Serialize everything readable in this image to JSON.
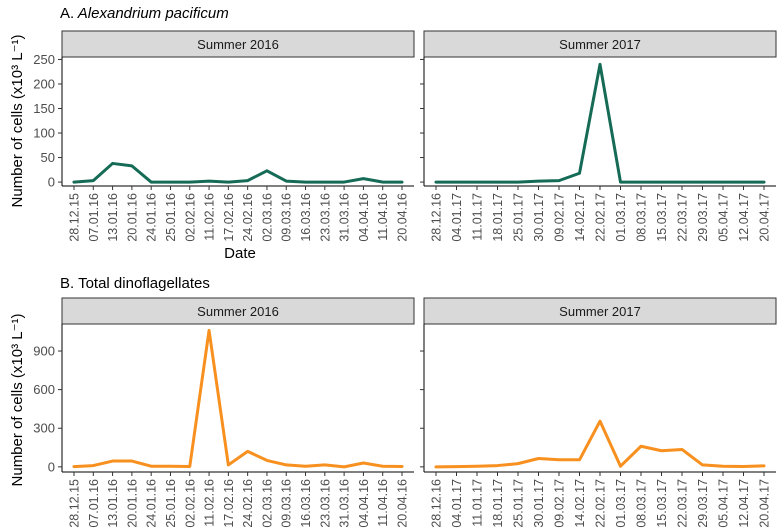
{
  "colors": {
    "alexandrium": "#156b56",
    "dinoflagellates": "#f7901e",
    "strip_fill": "#d9d9d9",
    "axis": "#000000",
    "tick_label": "#4d4d4d"
  },
  "chart_data": [
    {
      "type": "line",
      "panel_title": "A.",
      "panel_title_italic": "Alexandrium pacificum",
      "ylabel": "Number of cells (x10³ L⁻¹)",
      "xlabel": "Date",
      "ylim": [
        -8,
        255
      ],
      "yticks": [
        0,
        50,
        100,
        150,
        200,
        250
      ],
      "color_key": "alexandrium",
      "facets": [
        {
          "title": "Summer 2016",
          "categories": [
            "28.12.15",
            "07.01.16",
            "13.01.16",
            "20.01.16",
            "24.01.16",
            "25.01.16",
            "02.02.16",
            "11.02.16",
            "17.02.16",
            "24.02.16",
            "02.03.16",
            "09.03.16",
            "16.03.16",
            "23.03.16",
            "31.03.16",
            "04.04.16",
            "11.04.16",
            "20.04.16"
          ],
          "values": [
            0,
            3,
            38,
            33,
            0,
            0,
            0,
            2,
            0,
            3,
            23,
            2,
            0,
            0,
            0,
            7,
            0,
            0
          ]
        },
        {
          "title": "Summer 2017",
          "categories": [
            "28.12.16",
            "04.01.17",
            "11.01.17",
            "18.01.17",
            "25.01.17",
            "30.01.17",
            "09.02.17",
            "14.02.17",
            "22.02.17",
            "01.03.17",
            "08.03.17",
            "15.03.17",
            "22.03.17",
            "29.03.17",
            "05.04.17",
            "12.04.17",
            "20.04.17"
          ],
          "values": [
            0,
            0,
            0,
            0,
            0,
            2,
            3,
            18,
            240,
            0,
            0,
            0,
            0,
            0,
            0,
            0,
            0
          ]
        }
      ]
    },
    {
      "type": "line",
      "panel_title": "B. Total dinoflagellates",
      "panel_title_italic": "",
      "ylabel": "Number of cells (x10³ L⁻¹)",
      "xlabel": "",
      "ylim": [
        -40,
        1110
      ],
      "yticks": [
        0,
        300,
        600,
        900
      ],
      "color_key": "dinoflagellates",
      "facets": [
        {
          "title": "Summer 2016",
          "categories": [
            "28.12.15",
            "07.01.16",
            "13.01.16",
            "20.01.16",
            "24.01.16",
            "25.01.16",
            "02.02.16",
            "11.02.16",
            "17.02.16",
            "24.02.16",
            "02.03.16",
            "09.03.16",
            "16.03.16",
            "23.03.16",
            "31.03.16",
            "04.04.16",
            "11.04.16",
            "20.04.16"
          ],
          "values": [
            2,
            10,
            45,
            45,
            5,
            5,
            3,
            1060,
            15,
            120,
            50,
            15,
            5,
            15,
            0,
            30,
            5,
            3
          ]
        },
        {
          "title": "Summer 2017",
          "categories": [
            "28.12.16",
            "04.01.17",
            "11.01.17",
            "18.01.17",
            "25.01.17",
            "30.01.17",
            "09.02.17",
            "14.02.17",
            "22.02.17",
            "01.03.17",
            "08.03.17",
            "15.03.17",
            "22.03.17",
            "29.03.17",
            "05.04.17",
            "12.04.17",
            "20.04.17"
          ],
          "values": [
            0,
            2,
            5,
            10,
            25,
            65,
            55,
            55,
            355,
            5,
            160,
            125,
            135,
            15,
            5,
            3,
            8
          ]
        }
      ]
    }
  ]
}
